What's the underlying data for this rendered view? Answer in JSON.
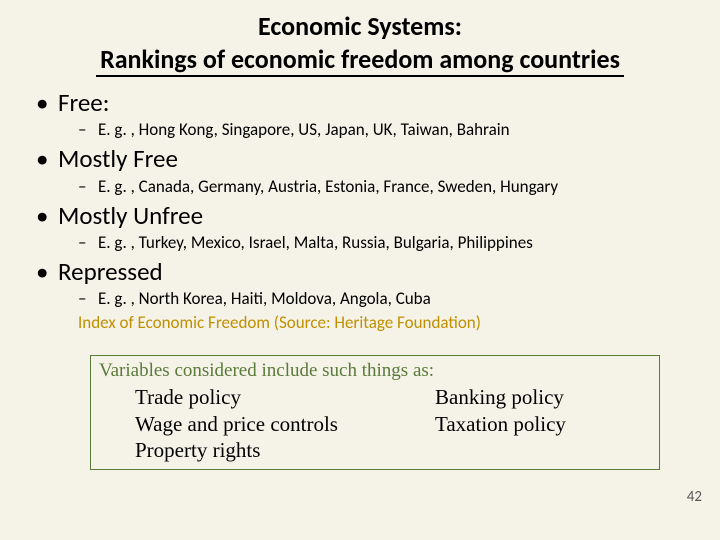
{
  "title": {
    "line1": "Economic Systems:",
    "line2": "Rankings of economic freedom among countries"
  },
  "categories": [
    {
      "label": "Free:",
      "examples": "E. g. , Hong Kong, Singapore, US, Japan, UK, Taiwan, Bahrain"
    },
    {
      "label": "Mostly Free",
      "examples": "E. g. , Canada, Germany, Austria, Estonia, France, Sweden, Hungary"
    },
    {
      "label": "Mostly Unfree",
      "examples": "E. g. , Turkey, Mexico, Israel, Malta, Russia, Bulgaria, Philippines"
    },
    {
      "label": "Repressed",
      "examples": "E. g. , North Korea, Haiti, Moldova, Angola, Cuba"
    }
  ],
  "source": "Index of Economic Freedom (Source: Heritage Foundation)",
  "variables": {
    "header": "Variables considered include such things as:",
    "left": [
      "Trade policy",
      "Wage and price controls",
      "Property rights"
    ],
    "right": [
      "Banking policy",
      "Taxation policy"
    ]
  },
  "colors": {
    "background": "#f5f2e8",
    "source_text": "#bf9000",
    "box_border": "#5a7a3a",
    "box_header": "#5a7a3a"
  },
  "page_number": "42"
}
